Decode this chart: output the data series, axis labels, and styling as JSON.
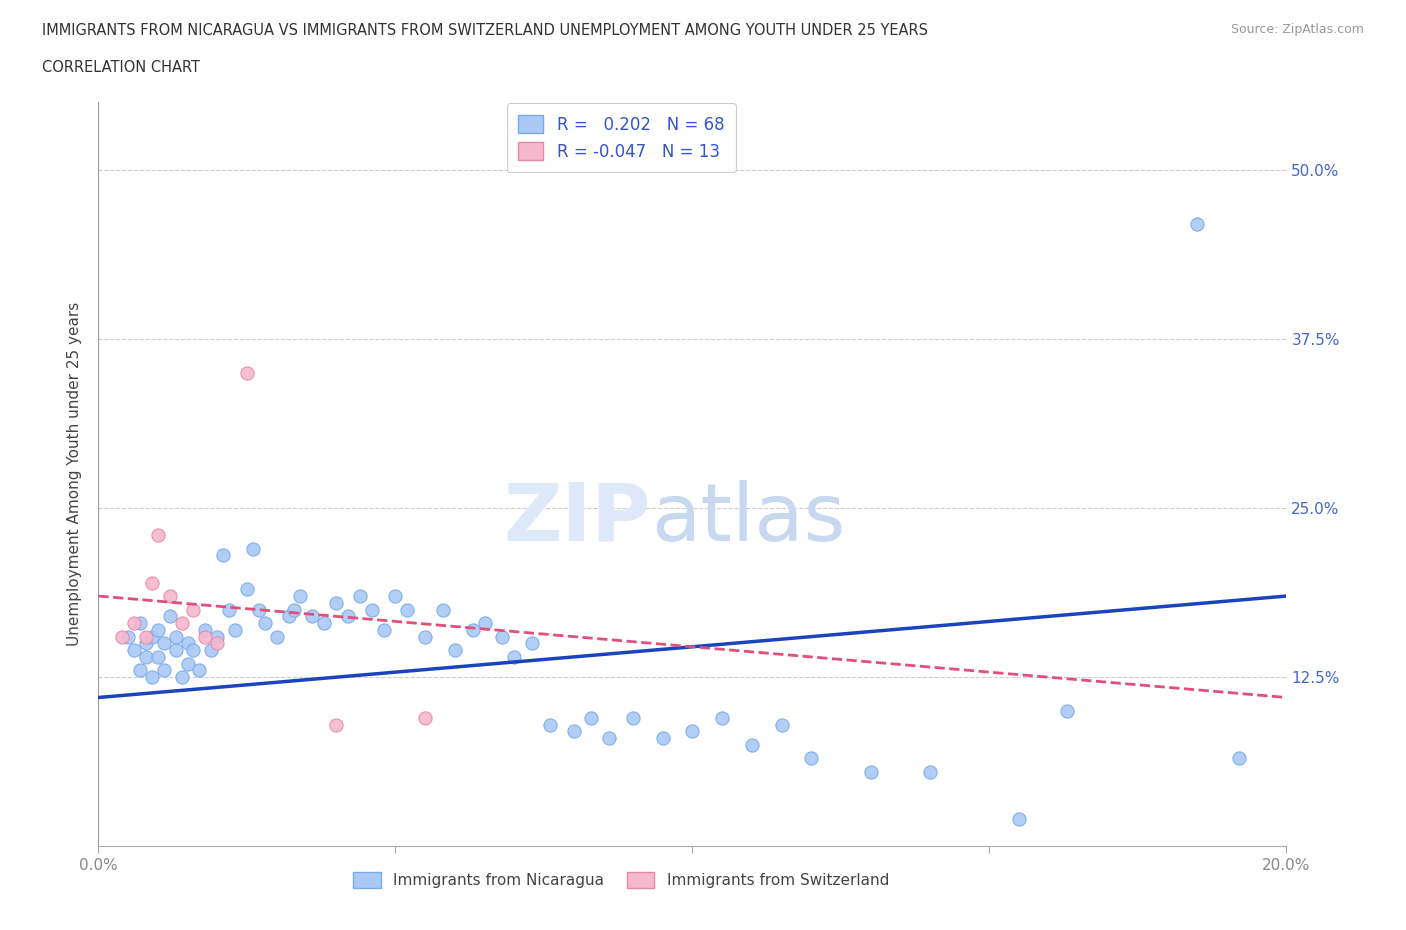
{
  "title_line1": "IMMIGRANTS FROM NICARAGUA VS IMMIGRANTS FROM SWITZERLAND UNEMPLOYMENT AMONG YOUTH UNDER 25 YEARS",
  "title_line2": "CORRELATION CHART",
  "source": "Source: ZipAtlas.com",
  "ylabel": "Unemployment Among Youth under 25 years",
  "xlim": [
    0.0,
    0.2
  ],
  "ylim": [
    0.0,
    0.55
  ],
  "yticks": [
    0.0,
    0.125,
    0.25,
    0.375,
    0.5
  ],
  "ytick_labels": [
    "",
    "12.5%",
    "25.0%",
    "37.5%",
    "50.0%"
  ],
  "xticks": [
    0.0,
    0.05,
    0.1,
    0.15,
    0.2
  ],
  "nicaragua_R": 0.202,
  "nicaragua_N": 68,
  "switzerland_R": -0.047,
  "switzerland_N": 13,
  "nicaragua_color": "#aac9f5",
  "nicaragua_edge_color": "#7aaae8",
  "nicaragua_line_color": "#1a44bb",
  "switzerland_color": "#f5b8cc",
  "switzerland_edge_color": "#e888aa",
  "switzerland_line_color": "#e0507a",
  "watermark_zip": "ZIP",
  "watermark_atlas": "atlas",
  "legend_label_nicaragua": "Immigrants from Nicaragua",
  "legend_label_switzerland": "Immigrants from Switzerland",
  "nicaragua_x": [
    0.005,
    0.006,
    0.007,
    0.007,
    0.008,
    0.008,
    0.009,
    0.009,
    0.01,
    0.01,
    0.011,
    0.011,
    0.012,
    0.013,
    0.013,
    0.014,
    0.015,
    0.015,
    0.016,
    0.017,
    0.018,
    0.019,
    0.02,
    0.021,
    0.022,
    0.023,
    0.025,
    0.026,
    0.027,
    0.028,
    0.03,
    0.032,
    0.033,
    0.034,
    0.036,
    0.038,
    0.04,
    0.042,
    0.044,
    0.046,
    0.048,
    0.05,
    0.052,
    0.055,
    0.058,
    0.06,
    0.063,
    0.065,
    0.068,
    0.07,
    0.073,
    0.076,
    0.08,
    0.083,
    0.086,
    0.09,
    0.095,
    0.1,
    0.105,
    0.11,
    0.115,
    0.12,
    0.13,
    0.14,
    0.155,
    0.163,
    0.185,
    0.192
  ],
  "nicaragua_y": [
    0.155,
    0.145,
    0.165,
    0.13,
    0.15,
    0.14,
    0.155,
    0.125,
    0.14,
    0.16,
    0.13,
    0.15,
    0.17,
    0.145,
    0.155,
    0.125,
    0.135,
    0.15,
    0.145,
    0.13,
    0.16,
    0.145,
    0.155,
    0.215,
    0.175,
    0.16,
    0.19,
    0.22,
    0.175,
    0.165,
    0.155,
    0.17,
    0.175,
    0.185,
    0.17,
    0.165,
    0.18,
    0.17,
    0.185,
    0.175,
    0.16,
    0.185,
    0.175,
    0.155,
    0.175,
    0.145,
    0.16,
    0.165,
    0.155,
    0.14,
    0.15,
    0.09,
    0.085,
    0.095,
    0.08,
    0.095,
    0.08,
    0.085,
    0.095,
    0.075,
    0.09,
    0.065,
    0.055,
    0.055,
    0.02,
    0.1,
    0.46,
    0.065
  ],
  "switzerland_x": [
    0.004,
    0.006,
    0.008,
    0.009,
    0.01,
    0.012,
    0.014,
    0.016,
    0.018,
    0.02,
    0.025,
    0.04,
    0.055
  ],
  "switzerland_y": [
    0.155,
    0.165,
    0.155,
    0.195,
    0.23,
    0.185,
    0.165,
    0.175,
    0.155,
    0.15,
    0.35,
    0.09,
    0.095
  ],
  "nic_regress_x0": 0.0,
  "nic_regress_y0": 0.11,
  "nic_regress_x1": 0.2,
  "nic_regress_y1": 0.185,
  "swi_regress_x0": 0.0,
  "swi_regress_y0": 0.185,
  "swi_regress_x1": 0.2,
  "swi_regress_y1": 0.11,
  "grid_color": "#cccccc",
  "background_color": "#ffffff"
}
